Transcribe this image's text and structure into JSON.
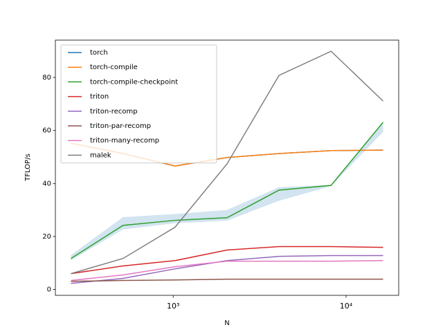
{
  "chart_data": {
    "type": "line",
    "xlabel": "N",
    "ylabel": "TFLOP/s",
    "x": [
      256,
      512,
      1024,
      2048,
      4096,
      8192,
      16384
    ],
    "xscale": "log",
    "xlim": [
      208,
      20170
    ],
    "xticks": [
      {
        "value": 1000,
        "label": "10³"
      },
      {
        "value": 10000,
        "label": "10⁴"
      }
    ],
    "ylim": [
      -2.2,
      94.1
    ],
    "yticks": [
      0,
      20,
      40,
      60,
      80
    ],
    "legend": "upper left",
    "series": [
      {
        "name": "torch",
        "color": "#1f77b4",
        "values": [
          55.2,
          51.3,
          46.6,
          49.8,
          51.3,
          52.4,
          52.6
        ]
      },
      {
        "name": "torch-compile",
        "color": "#ff7f0e",
        "values": [
          55.2,
          51.3,
          46.6,
          49.8,
          51.3,
          52.4,
          52.6
        ]
      },
      {
        "name": "torch-compile-checkpoint",
        "color": "#2ca02c",
        "values": [
          11.7,
          24.2,
          26.1,
          27.1,
          37.5,
          39.3,
          63.1
        ],
        "band_color": "#1f77b4",
        "band_lower": [
          11,
          22.7,
          25,
          26,
          33.5,
          39,
          59.5
        ],
        "band_upper": [
          13,
          27.3,
          28.5,
          30,
          38.6,
          39.5,
          63
        ]
      },
      {
        "name": "triton",
        "color": "#d62728",
        "values": [
          6.0,
          8.9,
          10.9,
          14.9,
          16.2,
          16.2,
          15.9
        ]
      },
      {
        "name": "triton-recomp",
        "color": "#9467bd",
        "values": [
          2.3,
          4.2,
          7.8,
          10.9,
          12.5,
          12.8,
          12.8
        ]
      },
      {
        "name": "triton-par-recomp",
        "color": "#8c564b",
        "values": [
          3.1,
          3.4,
          3.6,
          3.9,
          3.9,
          3.9,
          3.9
        ]
      },
      {
        "name": "triton-many-recomp",
        "color": "#e377c2",
        "values": [
          3.4,
          5.5,
          8.6,
          10.7,
          10.7,
          10.7,
          10.9
        ]
      },
      {
        "name": "malek",
        "color": "#7f7f7f",
        "values": [
          6.0,
          11.7,
          23.5,
          47.4,
          80.8,
          89.9,
          71.1
        ]
      }
    ]
  }
}
